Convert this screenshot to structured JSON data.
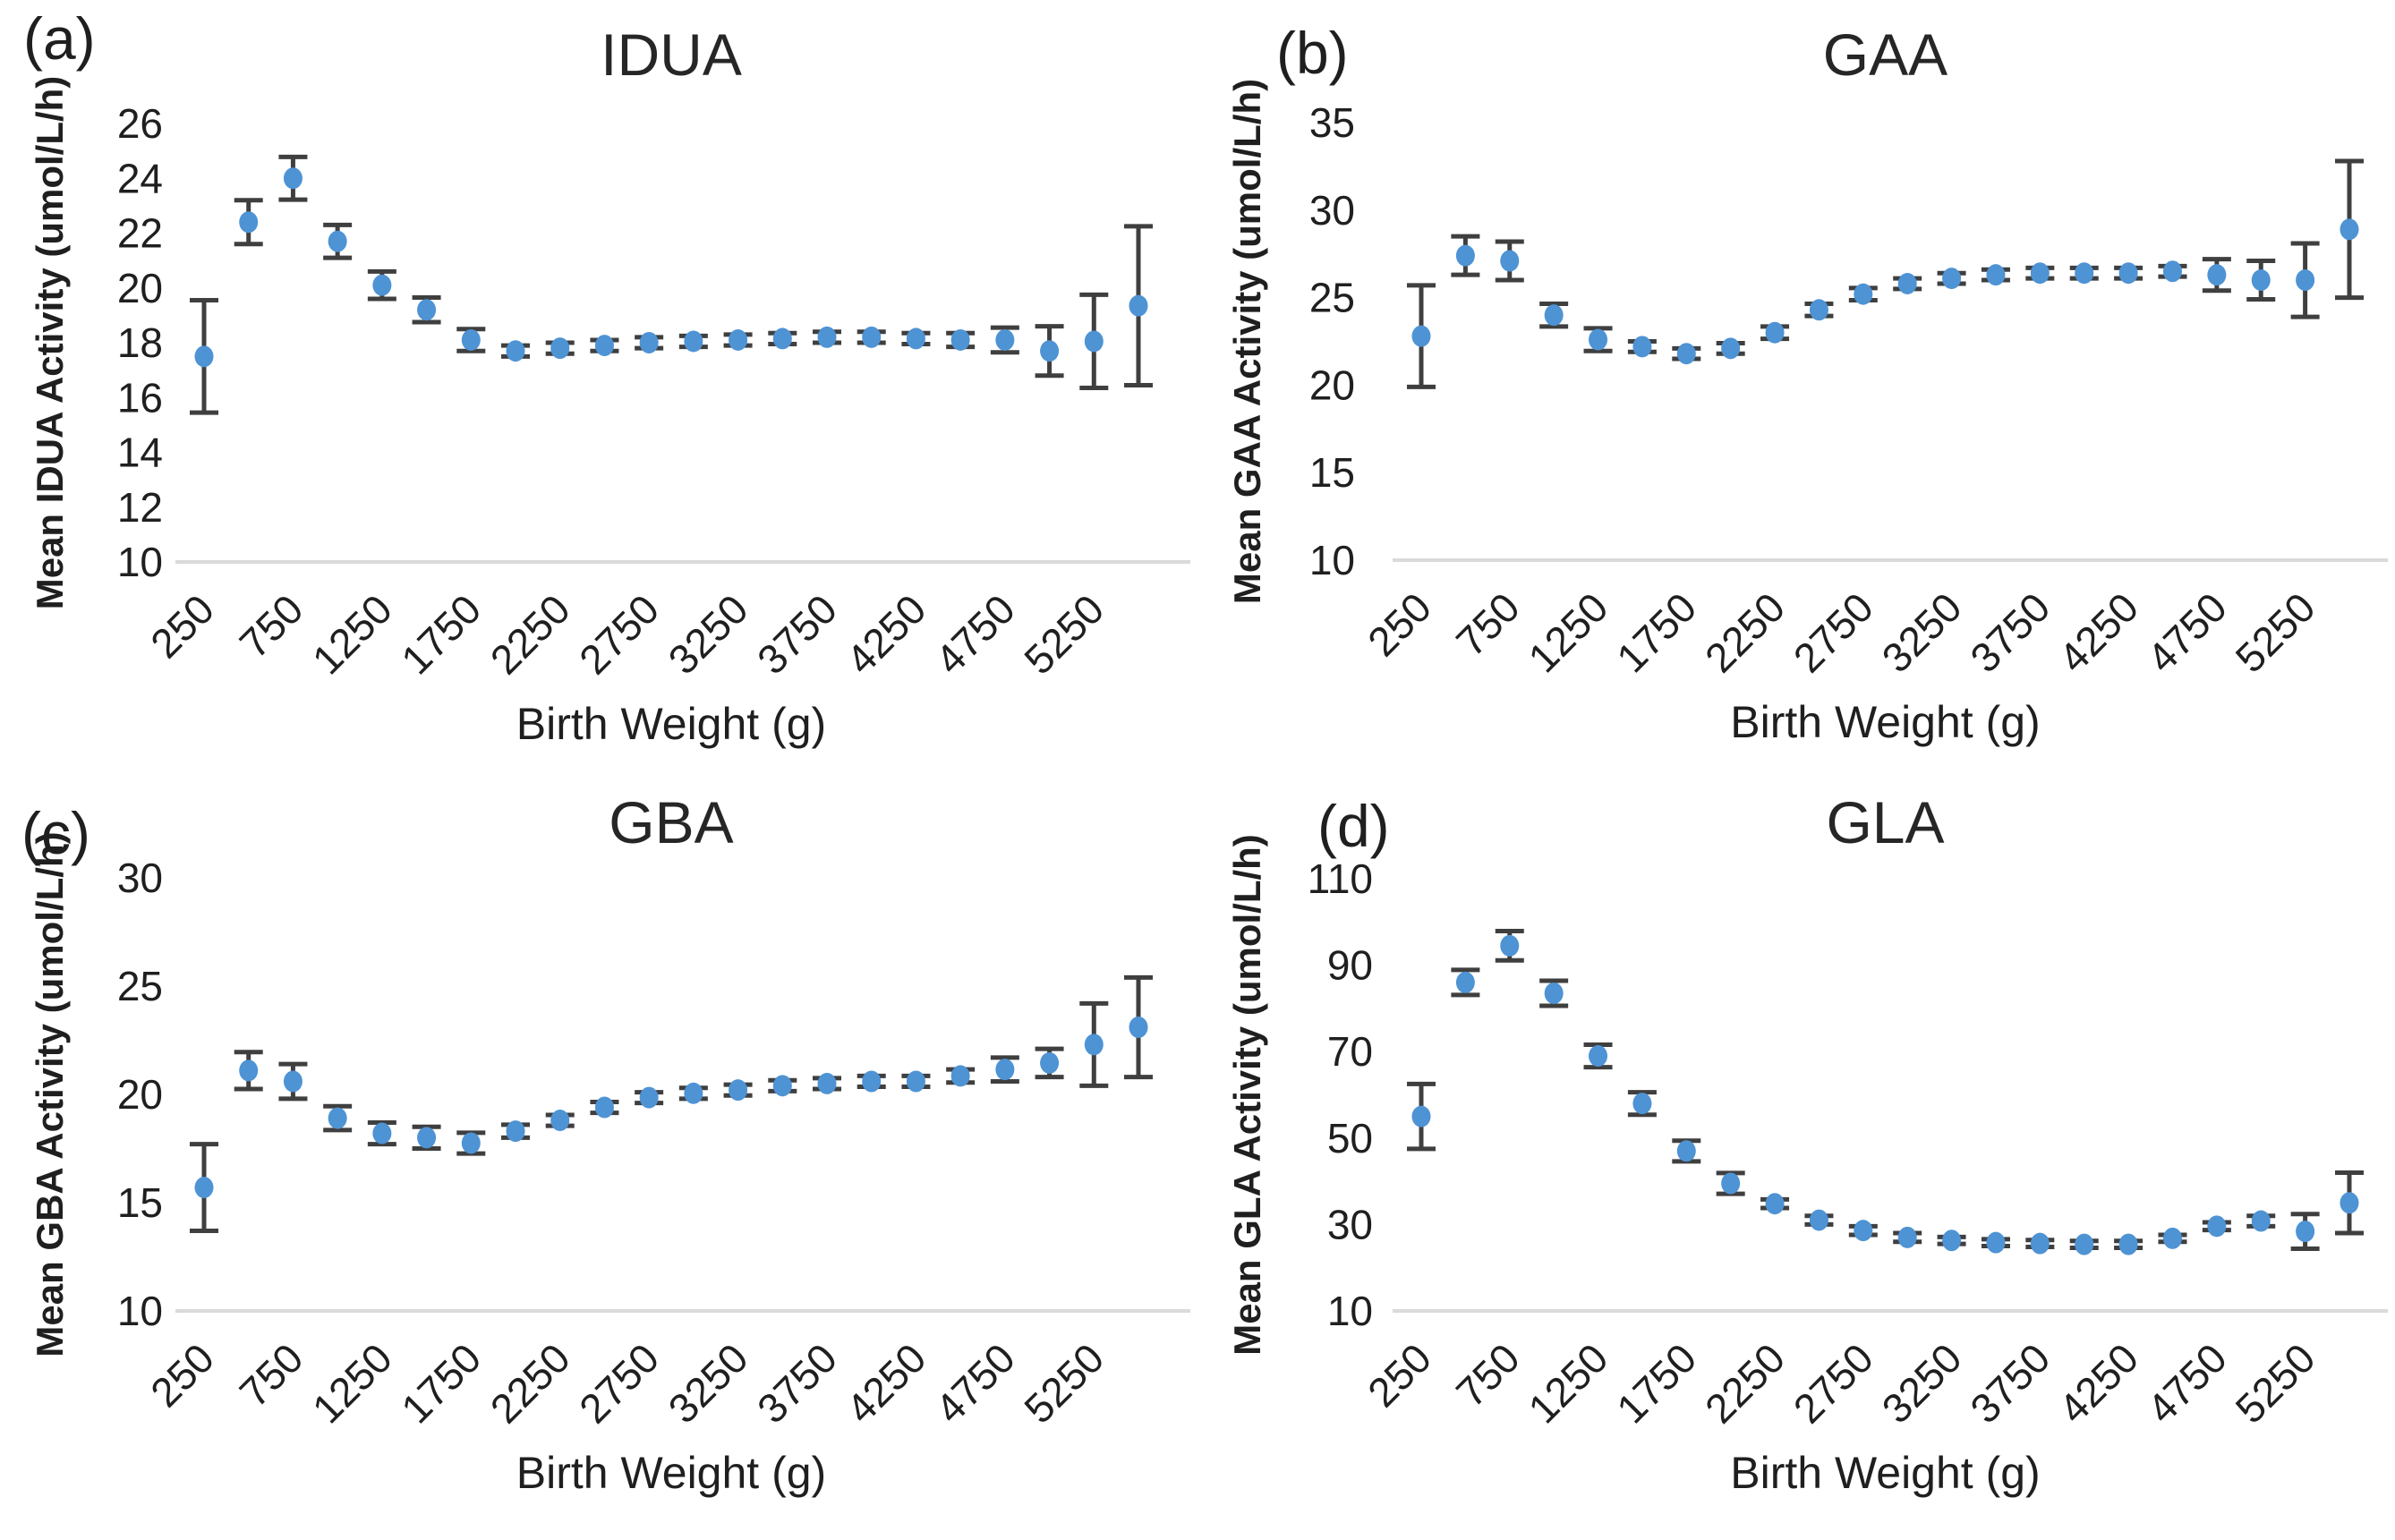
{
  "figure": {
    "xlabel_shared": "Birth Weight (g)",
    "x_tick_labels": [
      "250",
      "750",
      "1250",
      "1750",
      "2250",
      "2750",
      "3250",
      "3750",
      "4250",
      "4750",
      "5250"
    ],
    "colors": {
      "marker": "#4E93D4",
      "error_bar": "#3F3F3F",
      "gridline": "#DADADA",
      "text": "#1F1F1F"
    }
  },
  "chart_data": [
    {
      "type": "scatter",
      "panel_label": "(a)",
      "title": "IDUA",
      "ylabel": "Mean IDUA Activity (umol/L/h)",
      "xlabel": "Birth Weight (g)",
      "ylim": [
        10,
        26
      ],
      "yticks": [
        10,
        12,
        14,
        16,
        18,
        20,
        22,
        24,
        26
      ],
      "x": [
        250,
        500,
        750,
        1000,
        1250,
        1500,
        1750,
        2000,
        2250,
        2500,
        2750,
        3000,
        3250,
        3500,
        3750,
        4000,
        4250,
        4500,
        4750,
        5000,
        5250,
        5500
      ],
      "x_tick_labels": [
        "250",
        "750",
        "1250",
        "1750",
        "2250",
        "2750",
        "3250",
        "3750",
        "4250",
        "4750",
        "5250"
      ],
      "values": [
        17.5,
        22.4,
        24.0,
        21.7,
        20.1,
        19.2,
        18.1,
        17.7,
        17.8,
        17.9,
        18.0,
        18.05,
        18.1,
        18.15,
        18.2,
        18.2,
        18.15,
        18.1,
        18.1,
        17.7,
        18.05,
        19.35
      ],
      "errors": [
        2.05,
        0.8,
        0.78,
        0.6,
        0.5,
        0.45,
        0.4,
        0.2,
        0.2,
        0.2,
        0.2,
        0.2,
        0.2,
        0.2,
        0.2,
        0.2,
        0.2,
        0.25,
        0.45,
        0.9,
        1.7,
        2.9
      ],
      "grid": "min-gridline-only",
      "legend": null
    },
    {
      "type": "scatter",
      "panel_label": "(b)",
      "title": "GAA",
      "ylabel": "Mean GAA Activity (umol/L/h)",
      "xlabel": "Birth Weight (g)",
      "ylim": [
        10,
        35
      ],
      "yticks": [
        10,
        15,
        20,
        25,
        30,
        35
      ],
      "x": [
        250,
        500,
        750,
        1000,
        1250,
        1500,
        1750,
        2000,
        2250,
        2500,
        2750,
        3000,
        3250,
        3500,
        3750,
        4000,
        4250,
        4500,
        4750,
        5000,
        5250,
        5500
      ],
      "x_tick_labels": [
        "250",
        "750",
        "1250",
        "1750",
        "2250",
        "2750",
        "3250",
        "3750",
        "4250",
        "4750",
        "5250"
      ],
      "values": [
        22.8,
        27.4,
        27.1,
        24.0,
        22.6,
        22.2,
        21.8,
        22.1,
        23.0,
        24.3,
        25.2,
        25.8,
        26.1,
        26.3,
        26.4,
        26.4,
        26.4,
        26.5,
        26.3,
        26.0,
        26.0,
        28.9
      ],
      "errors": [
        2.9,
        1.1,
        1.1,
        0.65,
        0.65,
        0.3,
        0.3,
        0.3,
        0.35,
        0.35,
        0.35,
        0.3,
        0.3,
        0.3,
        0.3,
        0.3,
        0.3,
        0.3,
        0.9,
        1.1,
        2.1,
        3.9
      ],
      "grid": "min-gridline-only",
      "legend": null
    },
    {
      "type": "scatter",
      "panel_label": "(c)",
      "title": "GBA",
      "ylabel": "Mean GBA Activity (umol/L/h)",
      "xlabel": "Birth Weight (g)",
      "ylim": [
        10,
        30
      ],
      "yticks": [
        10,
        15,
        20,
        25,
        30
      ],
      "x": [
        250,
        500,
        750,
        1000,
        1250,
        1500,
        1750,
        2000,
        2250,
        2500,
        2750,
        3000,
        3250,
        3500,
        3750,
        4000,
        4250,
        4500,
        4750,
        5000,
        5250,
        5500
      ],
      "x_tick_labels": [
        "250",
        "750",
        "1250",
        "1750",
        "2250",
        "2750",
        "3250",
        "3750",
        "4250",
        "4750",
        "5250"
      ],
      "values": [
        15.7,
        21.1,
        20.6,
        18.9,
        18.2,
        18.0,
        17.75,
        18.3,
        18.8,
        19.4,
        19.85,
        20.05,
        20.2,
        20.4,
        20.5,
        20.6,
        20.6,
        20.85,
        21.15,
        21.45,
        22.3,
        23.1
      ],
      "errors": [
        2.0,
        0.85,
        0.8,
        0.55,
        0.5,
        0.5,
        0.48,
        0.3,
        0.25,
        0.25,
        0.25,
        0.25,
        0.25,
        0.25,
        0.25,
        0.25,
        0.25,
        0.3,
        0.55,
        0.65,
        1.9,
        2.3
      ],
      "grid": "min-gridline-only",
      "legend": null
    },
    {
      "type": "scatter",
      "panel_label": "(d)",
      "title": "GLA",
      "ylabel": "Mean GLA Activity (umol/L/h)",
      "xlabel": "Birth Weight (g)",
      "ylim": [
        10,
        110
      ],
      "yticks": [
        10,
        30,
        50,
        70,
        90,
        110
      ],
      "x": [
        250,
        500,
        750,
        1000,
        1250,
        1500,
        1750,
        2000,
        2250,
        2500,
        2750,
        3000,
        3250,
        3500,
        3750,
        4000,
        4250,
        4500,
        4750,
        5000,
        5250,
        5500
      ],
      "x_tick_labels": [
        "250",
        "750",
        "1250",
        "1750",
        "2250",
        "2750",
        "3250",
        "3750",
        "4250",
        "4750",
        "5250"
      ],
      "values": [
        55,
        86,
        94.5,
        83.5,
        69,
        58,
        47,
        39.5,
        34.8,
        31,
        28.6,
        27,
        26.3,
        25.8,
        25.6,
        25.4,
        25.4,
        26.8,
        29.6,
        30.8,
        28.4,
        35
      ],
      "errors": [
        7.5,
        2.9,
        3.4,
        2.9,
        2.6,
        2.6,
        2.4,
        2.4,
        1.0,
        1.0,
        1.0,
        1.0,
        0.8,
        0.8,
        0.8,
        0.8,
        0.8,
        0.8,
        0.9,
        1.2,
        4.0,
        7.0
      ],
      "grid": "min-gridline-only",
      "legend": null
    }
  ]
}
